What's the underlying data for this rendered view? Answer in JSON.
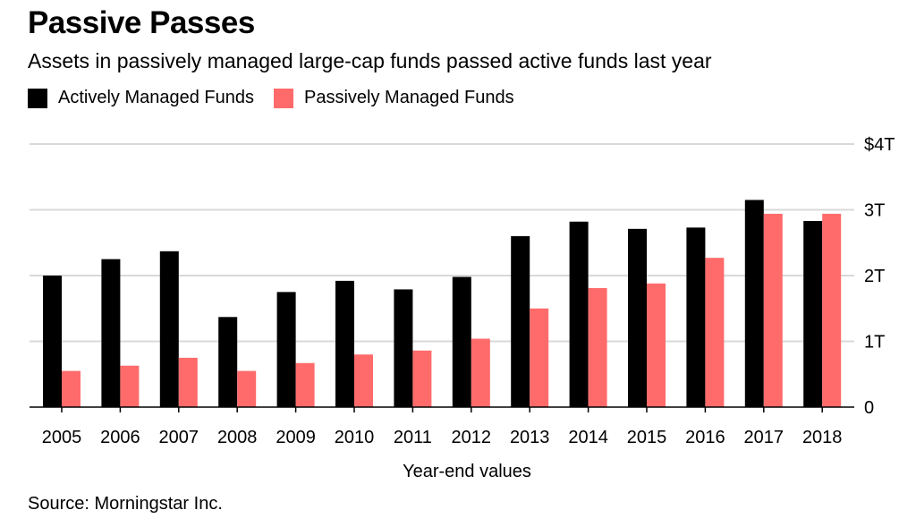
{
  "title": "Passive Passes",
  "subtitle": "Assets in passively managed large-cap funds passed active funds last year",
  "source": "Source: Morningstar Inc.",
  "colors": {
    "active": "#000000",
    "passive": "#ff6b6b",
    "grid": "#d9d9d9"
  },
  "chart_data": {
    "type": "bar",
    "title": "Passive Passes",
    "subtitle": "Assets in passively managed large-cap funds passed active funds last year",
    "xlabel": "Year-end values",
    "ylabel": "",
    "ylim": [
      0,
      4
    ],
    "y_ticks": [
      {
        "value": 0,
        "label": "0"
      },
      {
        "value": 1,
        "label": "1T"
      },
      {
        "value": 2,
        "label": "2T"
      },
      {
        "value": 3,
        "label": "3T"
      },
      {
        "value": 4,
        "label": "$4T"
      }
    ],
    "grid": true,
    "legend_position": "top-left",
    "categories": [
      "2005",
      "2006",
      "2007",
      "2008",
      "2009",
      "2010",
      "2011",
      "2012",
      "2013",
      "2014",
      "2015",
      "2016",
      "2017",
      "2018"
    ],
    "series": [
      {
        "name": "Actively Managed Funds",
        "color": "#000000",
        "values": [
          2.0,
          2.25,
          2.37,
          1.37,
          1.75,
          1.92,
          1.79,
          1.98,
          2.6,
          2.82,
          2.71,
          2.73,
          3.15,
          2.83
        ]
      },
      {
        "name": "Passively Managed Funds",
        "color": "#ff6b6b",
        "values": [
          0.55,
          0.63,
          0.75,
          0.55,
          0.67,
          0.8,
          0.86,
          1.04,
          1.5,
          1.81,
          1.88,
          2.27,
          2.94,
          2.94
        ]
      }
    ]
  }
}
